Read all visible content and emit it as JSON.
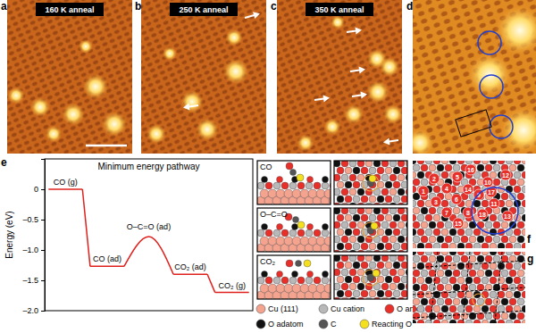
{
  "chart_data": {
    "type": "line",
    "title": "Minimum energy pathway",
    "y_label": "Energy (eV)",
    "categories": [
      "CO (g)",
      "CO (ad)",
      "O–C=O (ad)",
      "CO₂ (ad)",
      "CO₂ (g)"
    ],
    "values": [
      0,
      -1.27,
      -0.78,
      -1.4,
      -1.7
    ],
    "color": "#e0201c",
    "ylim": [
      -2.0,
      0.5
    ],
    "yticks": [
      {
        "value": -2.0,
        "label": "–2.0"
      },
      {
        "value": -1.5,
        "label": "–1.5"
      },
      {
        "value": -1.0,
        "label": "–1.0"
      },
      {
        "value": -0.5,
        "label": "–0.5"
      },
      0
    ],
    "tick_labels": "y",
    "grid": false
  },
  "figure": {
    "stm_panels": [
      {
        "letter": "a",
        "label": "160 K anneal"
      },
      {
        "letter": "b",
        "label": "250 K anneal"
      },
      {
        "letter": "c",
        "label": "350 K anneal"
      },
      {
        "letter": "d"
      }
    ],
    "chart_letter": "e",
    "structure_labels": [
      "CO",
      "O–C=O",
      "CO₂"
    ],
    "legend": [
      {
        "name": "Cu (111)",
        "color": "#f4a38f"
      },
      {
        "name": "Cu cation",
        "color": "#b8b8b8"
      },
      {
        "name": "O anion",
        "color": "#e8302a"
      },
      {
        "name": "O adatom",
        "color": "#111111"
      },
      {
        "name": "C",
        "color": "#555555"
      },
      {
        "name": "Reacting O",
        "color": "#f5e020"
      }
    ],
    "site_panel": {
      "letter": "f",
      "sites": [
        1,
        2,
        3,
        4,
        5,
        6,
        7,
        8,
        9,
        10,
        11,
        12,
        13,
        14,
        15,
        16,
        17,
        18
      ]
    },
    "lattice_panel": {
      "letter": "g"
    }
  }
}
